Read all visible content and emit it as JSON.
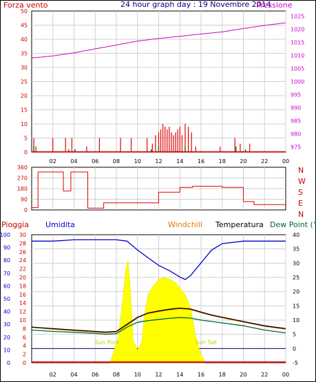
{
  "chart_data": [
    {
      "type": "line",
      "title": "24 hour graph day : 19 Novembre 2014",
      "left_label": "Forza vento",
      "right_label": "Pressione",
      "left_ticks": [
        0,
        5,
        10,
        15,
        20,
        25,
        30,
        35,
        40,
        45,
        50
      ],
      "right_ticks": [
        975,
        980,
        985,
        990,
        995,
        1000,
        1005,
        1010,
        1015,
        1020,
        1025
      ],
      "x_ticks": [
        "02",
        "04",
        "06",
        "08",
        "10",
        "12",
        "14",
        "16",
        "18",
        "20",
        "22",
        "00"
      ],
      "pressure": {
        "x": [
          0,
          2,
          4,
          6,
          8,
          10,
          12,
          14,
          16,
          18,
          20,
          22,
          24
        ],
        "y": [
          1009,
          1009.8,
          1011,
          1012.5,
          1014,
          1015.5,
          1016.5,
          1017.3,
          1018.2,
          1019,
          1020.3,
          1021.5,
          1022.5
        ]
      },
      "wind_gust": {
        "x": [
          0.2,
          0.4,
          2,
          3.2,
          3.8,
          4.1,
          5.2,
          6.4,
          8.4,
          9.4,
          10.9,
          11.4,
          11.7,
          12,
          12.2,
          12.4,
          12.6,
          12.8,
          13,
          13.2,
          13.4,
          13.6,
          13.8,
          14,
          14.2,
          14.5,
          14.8,
          15.1,
          15.5,
          17.8,
          19.2,
          19.7,
          20.6
        ],
        "y": [
          5,
          2,
          5,
          5,
          5,
          1,
          2,
          5,
          5,
          5,
          5,
          3,
          6,
          7,
          8,
          10,
          9,
          8,
          9,
          7,
          6,
          7,
          8,
          9,
          6,
          10,
          9,
          7,
          2,
          2,
          5,
          3,
          3
        ]
      },
      "wind_avg": {
        "x": [
          0.2,
          3.5,
          4.1,
          11.3,
          12,
          14.5,
          19.3,
          20.2
        ],
        "y": [
          2,
          1,
          1,
          1,
          2,
          2,
          2,
          1
        ]
      }
    },
    {
      "type": "line",
      "right_labels": [
        "N",
        "W",
        "S",
        "E",
        "N"
      ],
      "left_ticks": [
        0,
        90,
        180,
        270,
        360
      ],
      "direction": {
        "x": [
          0,
          0.6,
          0.6,
          3,
          3,
          3.7,
          3.7,
          5.3,
          5.3,
          6.8,
          6.8,
          9.5,
          9.5,
          12,
          12,
          14,
          14,
          15.2,
          15.2,
          18,
          18,
          20,
          20,
          21,
          21,
          24
        ],
        "y": [
          20,
          20,
          320,
          320,
          160,
          160,
          320,
          320,
          15,
          15,
          60,
          60,
          60,
          60,
          150,
          150,
          190,
          190,
          200,
          200,
          190,
          190,
          70,
          70,
          45,
          45
        ]
      }
    },
    {
      "type": "line",
      "labels": {
        "rain": "Pioggia",
        "humidity": "Umidita",
        "windchill": "Windchill",
        "temperature": "Temperatura",
        "dewpoint": "Dew Point (°C"
      },
      "left_ticks_humidity": [
        0,
        10,
        20,
        30,
        40,
        50,
        60,
        70,
        80,
        90,
        100
      ],
      "left_ticks_rain": [
        0,
        2,
        4,
        6,
        8,
        10,
        12,
        14,
        16,
        18,
        20,
        22,
        24,
        26,
        28,
        30
      ],
      "right_ticks_temp": [
        -5,
        0,
        5,
        10,
        15,
        20,
        25,
        30,
        35,
        40
      ],
      "sunrise_label": "Sun Rise",
      "sunset_label": "Sun Set",
      "humidity": {
        "x": [
          0,
          2,
          4,
          6,
          8,
          9,
          10,
          11,
          12,
          13,
          14,
          14.5,
          15,
          16,
          17,
          18,
          20,
          22,
          24
        ],
        "y": [
          95,
          95,
          96,
          96,
          96,
          95,
          88,
          82,
          76,
          72,
          67,
          65,
          68,
          78,
          88,
          93,
          95,
          95,
          95
        ]
      },
      "temperature": {
        "x": [
          0,
          2,
          4,
          6,
          7,
          8,
          9,
          10,
          11,
          12,
          13,
          14,
          15,
          16,
          17,
          18,
          20,
          22,
          24
        ],
        "y": [
          7.5,
          7,
          6.5,
          6,
          5.8,
          6,
          8.5,
          11,
          12.5,
          13.2,
          13.8,
          14.2,
          13.9,
          12.8,
          11.8,
          11,
          9.5,
          8,
          7
        ]
      },
      "windchill": {
        "x": [
          0,
          2,
          4,
          6,
          7,
          8,
          9,
          10,
          11,
          12,
          13,
          14,
          15,
          16,
          17,
          18,
          20,
          22,
          24
        ],
        "y": [
          7.5,
          6.8,
          6.3,
          5.8,
          5.5,
          5.8,
          8.2,
          10.8,
          12.3,
          13,
          13.6,
          14,
          13.7,
          12.6,
          11.6,
          10.8,
          9.3,
          7.8,
          6.8
        ]
      },
      "dewpoint": {
        "x": [
          0,
          2,
          4,
          6,
          7,
          8,
          9,
          10,
          11,
          12,
          13,
          14,
          15,
          16,
          17,
          18,
          20,
          22,
          24
        ],
        "y": [
          6.5,
          6,
          5.7,
          5.3,
          5,
          5.2,
          7.5,
          9.2,
          9.8,
          10.2,
          10.6,
          10.9,
          10.7,
          10,
          9.5,
          9,
          8,
          6.5,
          5.5
        ]
      },
      "solar": {
        "x": [
          7.4,
          7.8,
          8.2,
          8.6,
          8.9,
          9.1,
          9.3,
          9.6,
          10,
          10.4,
          10.7,
          11,
          11.5,
          12,
          12.5,
          13,
          13.5,
          14,
          14.5,
          15,
          15.3,
          15.6,
          16,
          16.4
        ],
        "y": [
          0,
          3,
          6,
          15,
          22,
          24,
          18,
          5,
          3,
          5,
          12,
          16,
          18,
          19.5,
          20,
          19.5,
          19,
          17.5,
          16,
          13,
          9,
          5,
          2,
          0
        ]
      },
      "rain": {
        "x": [
          0,
          24
        ],
        "y": [
          0.3,
          0.3
        ]
      }
    }
  ]
}
